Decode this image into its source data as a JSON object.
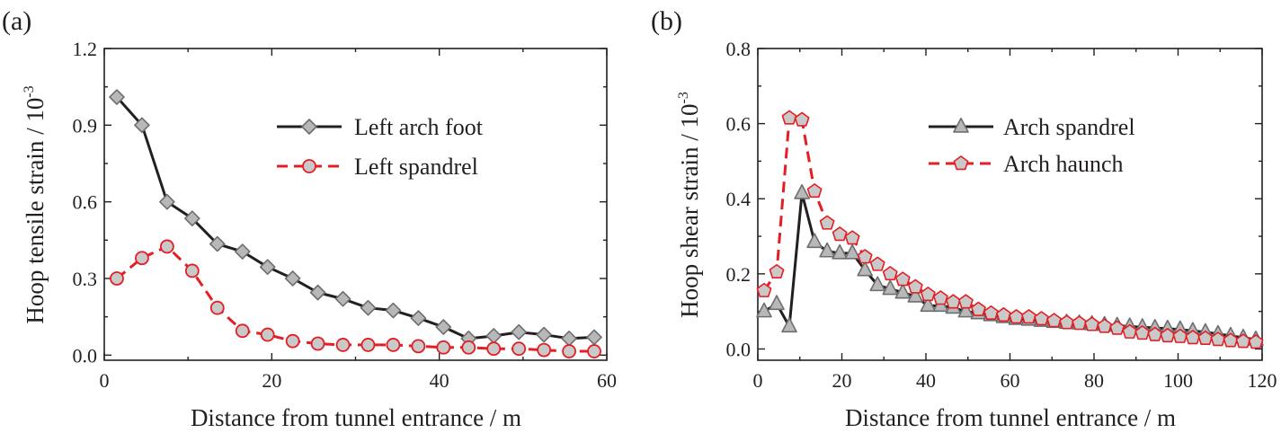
{
  "chart_data": [
    {
      "panel": "(a)",
      "type": "line",
      "xlabel": "Distance from tunnel entrance / m",
      "ylabel": "Hoop tensile strain / 10",
      "ylabel_exponent": "-3",
      "xlim": [
        0,
        60
      ],
      "ylim": [
        -0.02,
        1.2
      ],
      "xticks": [
        0,
        20,
        40,
        60
      ],
      "xtick_labels": [
        "0",
        "20",
        "40",
        "60"
      ],
      "yticks": [
        0.0,
        0.3,
        0.6,
        0.9,
        1.2
      ],
      "ytick_labels": [
        "0.0",
        "0.3",
        "0.6",
        "0.9",
        "1.2"
      ],
      "legend_position": "top-right",
      "series": [
        {
          "name": "Left arch foot",
          "style": "solid",
          "marker": "diamond",
          "line_color": "#231f20",
          "marker_fill": "#b8b8b8",
          "marker_stroke": "#6d6e71",
          "x": [
            1.5,
            4.5,
            7.5,
            10.5,
            13.5,
            16.5,
            19.5,
            22.5,
            25.5,
            28.5,
            31.5,
            34.5,
            37.5,
            40.5,
            43.5,
            46.5,
            49.5,
            52.5,
            55.5,
            58.5
          ],
          "y": [
            1.01,
            0.9,
            0.6,
            0.535,
            0.435,
            0.405,
            0.345,
            0.3,
            0.245,
            0.22,
            0.185,
            0.175,
            0.145,
            0.11,
            0.065,
            0.075,
            0.09,
            0.08,
            0.065,
            0.07
          ]
        },
        {
          "name": "Left spandrel",
          "style": "dashed",
          "marker": "circle",
          "line_color": "#e31e24",
          "marker_fill": "#c9c9c9",
          "marker_stroke": "#e31e24",
          "x": [
            1.5,
            4.5,
            7.5,
            10.5,
            13.5,
            16.5,
            19.5,
            22.5,
            25.5,
            28.5,
            31.5,
            34.5,
            37.5,
            40.5,
            43.5,
            46.5,
            49.5,
            52.5,
            55.5,
            58.5
          ],
          "y": [
            0.3,
            0.38,
            0.425,
            0.33,
            0.185,
            0.095,
            0.08,
            0.055,
            0.045,
            0.04,
            0.04,
            0.04,
            0.035,
            0.03,
            0.03,
            0.025,
            0.025,
            0.02,
            0.015,
            0.015
          ]
        }
      ]
    },
    {
      "panel": "(b)",
      "type": "line",
      "xlabel": "Distance from tunnel entrance / m",
      "ylabel": "Hoop shear strain / 10",
      "ylabel_exponent": "-3",
      "xlim": [
        0,
        120
      ],
      "ylim": [
        -0.03,
        0.8
      ],
      "xticks": [
        0,
        20,
        40,
        60,
        80,
        100,
        120
      ],
      "xtick_labels": [
        "0",
        "20",
        "40",
        "60",
        "80",
        "100",
        "120"
      ],
      "yticks": [
        0.0,
        0.2,
        0.4,
        0.6,
        0.8
      ],
      "ytick_labels": [
        "0.0",
        "0.2",
        "0.4",
        "0.6",
        "0.8"
      ],
      "legend_position": "top-right",
      "series": [
        {
          "name": "Arch spandrel",
          "style": "solid",
          "marker": "triangle",
          "line_color": "#231f20",
          "marker_fill": "#b8b8b8",
          "marker_stroke": "#6d6e71",
          "x": [
            1.5,
            4.5,
            7.5,
            10.5,
            13.5,
            16.5,
            19.5,
            22.5,
            25.5,
            28.5,
            31.5,
            34.5,
            37.5,
            40.5,
            43.5,
            46.5,
            49.5,
            52.5,
            55.5,
            58.5,
            61.5,
            64.5,
            67.5,
            70.5,
            73.5,
            76.5,
            79.5,
            82.5,
            85.5,
            88.5,
            91.5,
            94.5,
            97.5,
            100.5,
            103.5,
            106.5,
            109.5,
            112.5,
            115.5,
            118.5
          ],
          "y": [
            0.1,
            0.12,
            0.06,
            0.415,
            0.285,
            0.26,
            0.255,
            0.255,
            0.21,
            0.17,
            0.16,
            0.15,
            0.14,
            0.115,
            0.115,
            0.11,
            0.1,
            0.095,
            0.09,
            0.085,
            0.08,
            0.078,
            0.075,
            0.072,
            0.07,
            0.068,
            0.066,
            0.064,
            0.062,
            0.06,
            0.058,
            0.056,
            0.054,
            0.052,
            0.048,
            0.045,
            0.04,
            0.035,
            0.03,
            0.025
          ]
        },
        {
          "name": "Arch haunch",
          "style": "dashed",
          "marker": "pentagon",
          "line_color": "#e31e24",
          "marker_fill": "#c9c9c9",
          "marker_stroke": "#e31e24",
          "x": [
            1.5,
            4.5,
            7.5,
            10.5,
            13.5,
            16.5,
            19.5,
            22.5,
            25.5,
            28.5,
            31.5,
            34.5,
            37.5,
            40.5,
            43.5,
            46.5,
            49.5,
            52.5,
            55.5,
            58.5,
            61.5,
            64.5,
            67.5,
            70.5,
            73.5,
            76.5,
            79.5,
            82.5,
            85.5,
            88.5,
            91.5,
            94.5,
            97.5,
            100.5,
            103.5,
            106.5,
            109.5,
            112.5,
            115.5,
            118.5
          ],
          "y": [
            0.155,
            0.205,
            0.615,
            0.61,
            0.42,
            0.335,
            0.305,
            0.295,
            0.245,
            0.225,
            0.2,
            0.185,
            0.165,
            0.145,
            0.135,
            0.125,
            0.125,
            0.105,
            0.095,
            0.09,
            0.085,
            0.085,
            0.08,
            0.075,
            0.07,
            0.068,
            0.065,
            0.06,
            0.055,
            0.045,
            0.042,
            0.038,
            0.035,
            0.033,
            0.03,
            0.028,
            0.025,
            0.022,
            0.02,
            0.018
          ]
        }
      ]
    }
  ]
}
